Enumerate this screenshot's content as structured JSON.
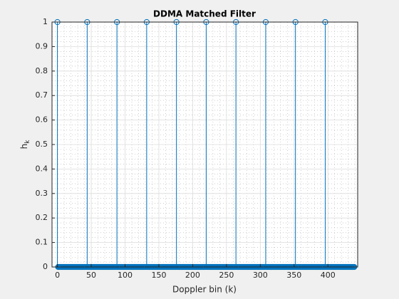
{
  "chart_data": {
    "type": "stem",
    "title": "DDMA Matched Filter",
    "xlabel": "Doppler bin (k)",
    "ylabel": "h",
    "ylabel_subscript": "k",
    "color": "#0072bd",
    "grid": true,
    "minor_grid": true,
    "xlim": [
      -8,
      444
    ],
    "ylim": [
      0,
      1
    ],
    "xticks": [
      0,
      50,
      100,
      150,
      200,
      250,
      300,
      350,
      400
    ],
    "yticks": [
      0,
      0.1,
      0.2,
      0.3,
      0.4,
      0.5,
      0.6,
      0.7,
      0.8,
      0.9,
      1
    ],
    "x": [
      0,
      1,
      2,
      3,
      4,
      5,
      6,
      7,
      8,
      9,
      10,
      11,
      12,
      13,
      14,
      15,
      16,
      17,
      18,
      19,
      20,
      21,
      22,
      23,
      24,
      25,
      26,
      27,
      28,
      29,
      30,
      31,
      32,
      33,
      34,
      35,
      36,
      37,
      38,
      39,
      40,
      41,
      42,
      43,
      44,
      45,
      46,
      47,
      48,
      49,
      50,
      51,
      52,
      53,
      54,
      55,
      56,
      57,
      58,
      59,
      60,
      61,
      62,
      63,
      64,
      65,
      66,
      67,
      68,
      69,
      70,
      71,
      72,
      73,
      74,
      75,
      76,
      77,
      78,
      79,
      80,
      81,
      82,
      83,
      84,
      85,
      86,
      87,
      88,
      89,
      90,
      91,
      92,
      93,
      94,
      95,
      96,
      97,
      98,
      99,
      100,
      101,
      102,
      103,
      104,
      105,
      106,
      107,
      108,
      109,
      110,
      111,
      112,
      113,
      114,
      115,
      116,
      117,
      118,
      119,
      120,
      121,
      122,
      123,
      124,
      125,
      126,
      127,
      128,
      129,
      130,
      131,
      132,
      133,
      134,
      135,
      136,
      137,
      138,
      139,
      140,
      141,
      142,
      143,
      144,
      145,
      146,
      147,
      148,
      149,
      150,
      151,
      152,
      153,
      154,
      155,
      156,
      157,
      158,
      159,
      160,
      161,
      162,
      163,
      164,
      165,
      166,
      167,
      168,
      169,
      170,
      171,
      172,
      173,
      174,
      175,
      176,
      177,
      178,
      179,
      180,
      181,
      182,
      183,
      184,
      185,
      186,
      187,
      188,
      189,
      190,
      191,
      192,
      193,
      194,
      195,
      196,
      197,
      198,
      199,
      200,
      201,
      202,
      203,
      204,
      205,
      206,
      207,
      208,
      209,
      210,
      211,
      212,
      213,
      214,
      215,
      216,
      217,
      218,
      219,
      220,
      221,
      222,
      223,
      224,
      225,
      226,
      227,
      228,
      229,
      230,
      231,
      232,
      233,
      234,
      235,
      236,
      237,
      238,
      239,
      240,
      241,
      242,
      243,
      244,
      245,
      246,
      247,
      248,
      249,
      250,
      251,
      252,
      253,
      254,
      255,
      256,
      257,
      258,
      259,
      260,
      261,
      262,
      263,
      264,
      265,
      266,
      267,
      268,
      269,
      270,
      271,
      272,
      273,
      274,
      275,
      276,
      277,
      278,
      279,
      280,
      281,
      282,
      283,
      284,
      285,
      286,
      287,
      288,
      289,
      290,
      291,
      292,
      293,
      294,
      295,
      296,
      297,
      298,
      299,
      300,
      301,
      302,
      303,
      304,
      305,
      306,
      307,
      308,
      309,
      310,
      311,
      312,
      313,
      314,
      315,
      316,
      317,
      318,
      319,
      320,
      321,
      322,
      323,
      324,
      325,
      326,
      327,
      328,
      329,
      330,
      331,
      332,
      333,
      334,
      335,
      336,
      337,
      338,
      339,
      340,
      341,
      342,
      343,
      344,
      345,
      346,
      347,
      348,
      349,
      350,
      351,
      352,
      353,
      354,
      355,
      356,
      357,
      358,
      359,
      360,
      361,
      362,
      363,
      364,
      365,
      366,
      367,
      368,
      369,
      370,
      371,
      372,
      373,
      374,
      375,
      376,
      377,
      378,
      379,
      380,
      381,
      382,
      383,
      384,
      385,
      386,
      387,
      388,
      389,
      390,
      391,
      392,
      393,
      394,
      395,
      396,
      397,
      398,
      399,
      400,
      401,
      402,
      403,
      404,
      405,
      406,
      407,
      408,
      409,
      410,
      411,
      412,
      413,
      414,
      415,
      416,
      417,
      418,
      419,
      420,
      421,
      422,
      423,
      424,
      425,
      426,
      427,
      428,
      429,
      430,
      431,
      432,
      433,
      434,
      435,
      436,
      437,
      438,
      439
    ],
    "values": [
      1,
      0,
      0,
      0,
      0,
      0,
      0,
      0,
      0,
      0,
      0,
      0,
      0,
      0,
      0,
      0,
      0,
      0,
      0,
      0,
      0,
      0,
      0,
      0,
      0,
      0,
      0,
      0,
      0,
      0,
      0,
      0,
      0,
      0,
      0,
      0,
      0,
      0,
      0,
      0,
      0,
      0,
      0,
      0,
      1,
      0,
      0,
      0,
      0,
      0,
      0,
      0,
      0,
      0,
      0,
      0,
      0,
      0,
      0,
      0,
      0,
      0,
      0,
      0,
      0,
      0,
      0,
      0,
      0,
      0,
      0,
      0,
      0,
      0,
      0,
      0,
      0,
      0,
      0,
      0,
      0,
      0,
      0,
      0,
      0,
      0,
      0,
      0,
      1,
      0,
      0,
      0,
      0,
      0,
      0,
      0,
      0,
      0,
      0,
      0,
      0,
      0,
      0,
      0,
      0,
      0,
      0,
      0,
      0,
      0,
      0,
      0,
      0,
      0,
      0,
      0,
      0,
      0,
      0,
      0,
      0,
      0,
      0,
      0,
      0,
      0,
      0,
      0,
      0,
      0,
      0,
      0,
      1,
      0,
      0,
      0,
      0,
      0,
      0,
      0,
      0,
      0,
      0,
      0,
      0,
      0,
      0,
      0,
      0,
      0,
      0,
      0,
      0,
      0,
      0,
      0,
      0,
      0,
      0,
      0,
      0,
      0,
      0,
      0,
      0,
      0,
      0,
      0,
      0,
      0,
      0,
      0,
      0,
      0,
      0,
      0,
      1,
      0,
      0,
      0,
      0,
      0,
      0,
      0,
      0,
      0,
      0,
      0,
      0,
      0,
      0,
      0,
      0,
      0,
      0,
      0,
      0,
      0,
      0,
      0,
      0,
      0,
      0,
      0,
      0,
      0,
      0,
      0,
      0,
      0,
      0,
      0,
      0,
      0,
      0,
      0,
      0,
      0,
      0,
      0,
      1,
      0,
      0,
      0,
      0,
      0,
      0,
      0,
      0,
      0,
      0,
      0,
      0,
      0,
      0,
      0,
      0,
      0,
      0,
      0,
      0,
      0,
      0,
      0,
      0,
      0,
      0,
      0,
      0,
      0,
      0,
      0,
      0,
      0,
      0,
      0,
      0,
      0,
      0,
      0,
      0,
      0,
      0,
      0,
      1,
      0,
      0,
      0,
      0,
      0,
      0,
      0,
      0,
      0,
      0,
      0,
      0,
      0,
      0,
      0,
      0,
      0,
      0,
      0,
      0,
      0,
      0,
      0,
      0,
      0,
      0,
      0,
      0,
      0,
      0,
      0,
      0,
      0,
      0,
      0,
      0,
      0,
      0,
      0,
      0,
      0,
      0,
      0,
      1,
      0,
      0,
      0,
      0,
      0,
      0,
      0,
      0,
      0,
      0,
      0,
      0,
      0,
      0,
      0,
      0,
      0,
      0,
      0,
      0,
      0,
      0,
      0,
      0,
      0,
      0,
      0,
      0,
      0,
      0,
      0,
      0,
      0,
      0,
      0,
      0,
      0,
      0,
      0,
      0,
      0,
      0,
      0,
      1,
      0,
      0,
      0,
      0,
      0,
      0,
      0,
      0,
      0,
      0,
      0,
      0,
      0,
      0,
      0,
      0,
      0,
      0,
      0,
      0,
      0,
      0,
      0,
      0,
      0,
      0,
      0,
      0,
      0,
      0,
      0,
      0,
      0,
      0,
      0,
      0,
      0,
      0,
      0,
      0,
      0,
      0,
      0,
      1,
      0,
      0,
      0,
      0,
      0,
      0,
      0,
      0,
      0,
      0,
      0,
      0,
      0,
      0,
      0,
      0,
      0,
      0,
      0,
      0,
      0,
      0,
      0,
      0,
      0,
      0,
      0,
      0,
      0,
      0,
      0,
      0,
      0,
      0,
      0,
      0,
      0,
      0,
      0,
      0,
      0,
      0,
      0
    ]
  }
}
